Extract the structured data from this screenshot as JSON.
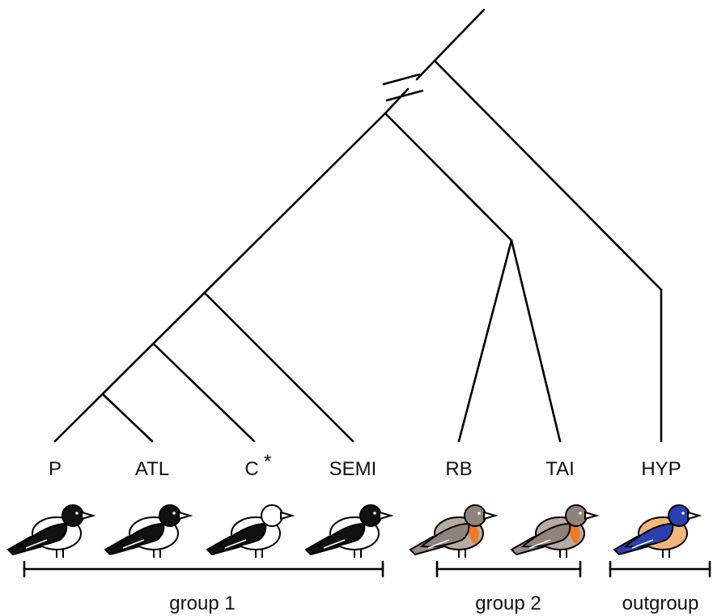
{
  "taxa": [
    {
      "label": "P"
    },
    {
      "label": "ATL"
    },
    {
      "label": "C",
      "marker": "*"
    },
    {
      "label": "SEMI"
    },
    {
      "label": "RB"
    },
    {
      "label": "TAI"
    },
    {
      "label": "HYP"
    }
  ],
  "groups": [
    {
      "label": "group 1"
    },
    {
      "label": "group 2"
    },
    {
      "label": "outgroup"
    }
  ]
}
